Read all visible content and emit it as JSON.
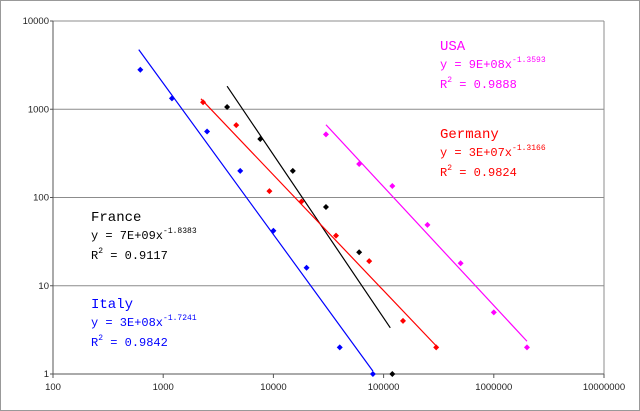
{
  "chart_data": {
    "type": "scatter",
    "title": "",
    "xlabel": "",
    "ylabel": "",
    "x_scale": "log",
    "y_scale": "log",
    "xlim": [
      100,
      10000000
    ],
    "ylim": [
      1,
      10000
    ],
    "grid": {
      "horizontal": true,
      "vertical": false
    },
    "x_ticks": [
      "100",
      "1000",
      "10000",
      "100000",
      "1000000",
      "10000000"
    ],
    "y_ticks": [
      "1",
      "10",
      "100",
      "1000",
      "10000"
    ],
    "series": [
      {
        "name": "Italy",
        "color": "#0000ff",
        "points": [
          [
            620,
            2800
          ],
          [
            1200,
            1330
          ],
          [
            2500,
            560
          ],
          [
            5000,
            200
          ],
          [
            10000,
            42
          ],
          [
            20000,
            16
          ],
          [
            40000,
            2
          ],
          [
            80000,
            1
          ]
        ],
        "trend": {
          "x_range": [
            600,
            80000
          ],
          "equation": "y = 3E+08x",
          "exponent": "-1.7241",
          "r2": "0.9842"
        }
      },
      {
        "name": "France",
        "color": "#000000",
        "points": [
          [
            3800,
            1060
          ],
          [
            7600,
            460
          ],
          [
            15000,
            200
          ],
          [
            30000,
            78
          ],
          [
            60000,
            24
          ],
          [
            120000,
            1
          ]
        ],
        "trend": {
          "x_range": [
            3800,
            115000
          ],
          "equation": "y = 7E+09x",
          "exponent": "-1.8383",
          "r2": "0.9117"
        }
      },
      {
        "name": "Germany",
        "color": "#ff0000",
        "points": [
          [
            2300,
            1200
          ],
          [
            4600,
            660
          ],
          [
            9200,
            118
          ],
          [
            18000,
            90
          ],
          [
            37000,
            37
          ],
          [
            74000,
            19
          ],
          [
            150000,
            4
          ],
          [
            300000,
            2
          ]
        ],
        "trend": {
          "x_range": [
            2200,
            310000
          ],
          "equation": "y = 3E+07x",
          "exponent": "-1.3166",
          "r2": "0.9824"
        }
      },
      {
        "name": "USA",
        "color": "#ff00ff",
        "points": [
          [
            30000,
            520
          ],
          [
            60000,
            240
          ],
          [
            120000,
            135
          ],
          [
            250000,
            49
          ],
          [
            500000,
            18
          ],
          [
            1000000,
            5
          ],
          [
            2000000,
            2
          ]
        ],
        "trend": {
          "x_range": [
            30000,
            2000000
          ],
          "equation": "y = 9E+08x",
          "exponent": "-1.3593",
          "r2": "0.9888"
        }
      }
    ],
    "annotations": [
      {
        "series": "USA",
        "label": "USA",
        "equation": "y = 9E+08x",
        "exponent": "-1.3593",
        "r2_label": "R",
        "r2_exp": "2",
        "r2_value": "= 0.9888",
        "placement": "top-right"
      },
      {
        "series": "Germany",
        "label": "Germany",
        "equation": "y = 3E+07x",
        "exponent": "-1.3166",
        "r2_label": "R",
        "r2_exp": "2",
        "r2_value": "= 0.9824",
        "placement": "right"
      },
      {
        "series": "France",
        "label": "France",
        "equation": "y = 7E+09x",
        "exponent": "-1.8383",
        "r2_label": "R",
        "r2_exp": "2",
        "r2_value": "= 0.9117",
        "placement": "center-left"
      },
      {
        "series": "Italy",
        "label": "Italy",
        "equation": "y = 3E+08x",
        "exponent": "-1.7241",
        "r2_label": "R",
        "r2_exp": "2",
        "r2_value": "= 0.9842",
        "placement": "bottom-left"
      }
    ]
  }
}
